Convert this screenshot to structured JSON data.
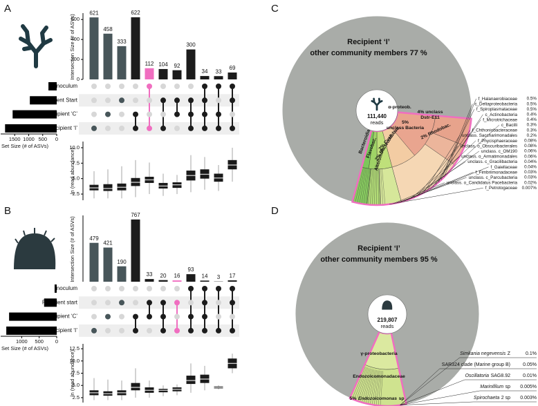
{
  "chart_data": [
    {
      "type": "upset",
      "panel": "A",
      "ylabel": "Intersection Size (# of ASVs)",
      "values": [
        621,
        458,
        333,
        622,
        112,
        104,
        92,
        300,
        34,
        33,
        69
      ],
      "colors": [
        "#48565a",
        "#48565a",
        "#48565a",
        "#1c1c1c",
        "#f06ec0",
        "#1c1c1c",
        "#1c1c1c",
        "#1c1c1c",
        "#1c1c1c",
        "#1c1c1c",
        "#1c1c1c"
      ],
      "ylim": [
        0,
        650
      ],
      "yticks": [
        0,
        200,
        400,
        600
      ],
      "sets": [
        "Inoculum",
        "Recipient Start",
        "Recipient ‘C’",
        "Recipient ‘I’"
      ],
      "set_sizes": [
        295,
        959,
        1574,
        1844
      ],
      "set_color": "#000000",
      "set_xlabel": "Set Size (# of ASVs)",
      "set_xlim": [
        2000,
        0
      ],
      "set_xticks": [
        1500,
        1000,
        500,
        0
      ],
      "memberships": [
        [
          3
        ],
        [
          2
        ],
        [
          1
        ],
        [
          2,
          3
        ],
        [
          0,
          3
        ],
        [
          1,
          3
        ],
        [
          1,
          2
        ],
        [
          1,
          2,
          3
        ],
        [
          0,
          1,
          2,
          3
        ],
        [
          0,
          2,
          3
        ],
        [
          0,
          1,
          3
        ]
      ],
      "box": {
        "ylabel": "ln (read abundance)",
        "ylim": [
          1.5,
          11
        ],
        "yticks": [
          2.5,
          {
            "value": 5,
            "label": "5.0"
          },
          7.5,
          {
            "value": 10,
            "label": "10.0"
          }
        ],
        "stats": [
          [
            1.8,
            3.1,
            3.5,
            4.0,
            6.2
          ],
          [
            1.8,
            3.0,
            3.4,
            4.1,
            6.5
          ],
          [
            1.8,
            3.1,
            3.6,
            4.2,
            7.0
          ],
          [
            2.0,
            3.8,
            4.4,
            5.1,
            8.0
          ],
          [
            2.5,
            4.3,
            4.8,
            5.3,
            7.6
          ],
          [
            2.2,
            3.4,
            3.8,
            4.3,
            5.8
          ],
          [
            2.5,
            3.5,
            4.0,
            4.4,
            5.6
          ],
          [
            2.8,
            4.7,
            5.5,
            6.3,
            8.8
          ],
          [
            3.2,
            5.0,
            5.7,
            6.5,
            8.5
          ],
          [
            3.0,
            4.5,
            5.1,
            5.8,
            7.2
          ],
          [
            4.5,
            6.5,
            7.2,
            8.0,
            10.0
          ]
        ]
      }
    },
    {
      "type": "upset",
      "panel": "B",
      "ylabel": "Intersection Size (# of ASVs)",
      "values": [
        479,
        421,
        190,
        767,
        33,
        20,
        16,
        93,
        14,
        3,
        17
      ],
      "colors": [
        "#48565a",
        "#48565a",
        "#48565a",
        "#1c1c1c",
        "#1c1c1c",
        "#1c1c1c",
        "#f06ec0",
        "#1c1c1c",
        "#1c1c1c",
        "#1c1c1c",
        "#1c1c1c"
      ],
      "ylim": [
        0,
        800
      ],
      "sets": [
        "Inoculum",
        "Recipient start",
        "Recipient ‘C’",
        "Recipient ‘I’"
      ],
      "set_sizes": [
        60,
        360,
        1360,
        1440
      ],
      "set_color": "#000000",
      "set_xlabel": "Set Size (# of ASVs)",
      "set_xlim": [
        1600,
        0
      ],
      "set_xticks": [
        1000,
        500,
        0
      ],
      "memberships": [
        [
          3
        ],
        [
          2
        ],
        [
          1
        ],
        [
          2,
          3
        ],
        [
          1,
          2
        ],
        [
          1,
          2,
          3
        ],
        [
          1,
          3
        ],
        [
          0,
          2,
          3
        ],
        [
          0,
          1,
          2,
          3
        ],
        [
          0,
          3
        ],
        [
          0,
          1,
          3
        ]
      ],
      "box": {
        "ylabel": "ln (read abundance)",
        "ylim": [
          1.5,
          13.5
        ],
        "yticks": [
          2.5,
          {
            "value": 5,
            "label": "5.0"
          },
          7.5,
          {
            "value": 10,
            "label": "10.0"
          },
          12.5
        ],
        "stats": [
          [
            2.0,
            3.0,
            3.5,
            4.0,
            6.5
          ],
          [
            2.0,
            2.9,
            3.3,
            3.8,
            6.2
          ],
          [
            2.0,
            3.0,
            3.5,
            4.0,
            6.0
          ],
          [
            2.5,
            4.0,
            4.6,
            5.5,
            8.5
          ],
          [
            2.5,
            3.5,
            4.0,
            4.6,
            6.0
          ],
          [
            2.8,
            3.6,
            4.0,
            4.3,
            5.0
          ],
          [
            3.0,
            3.8,
            4.2,
            4.6,
            5.2
          ],
          [
            3.5,
            5.3,
            6.0,
            7.0,
            9.5
          ],
          [
            4.0,
            5.5,
            6.3,
            7.2,
            9.0
          ],
          [
            4.2,
            4.4,
            4.6,
            4.8,
            5.0
          ],
          [
            7.5,
            8.5,
            9.5,
            10.5,
            11.5
          ]
        ]
      }
    },
    {
      "type": "pie",
      "panel": "C",
      "title_lines": [
        "Recipient ‘I’",
        "other community members 77 %"
      ],
      "value": 77,
      "color": "#a9aca8",
      "highlight_color": "#f06ec0",
      "reads": "111,440",
      "reads_unit": "reads",
      "segment_labels": [
        [
          "α-proteob."
        ],
        [
          "4% unclass",
          "Dstr-E11"
        ],
        [
          "5%",
          "unclass Bacteria"
        ],
        [
          "2% Rhodobac."
        ],
        [
          "Bacteroidia"
        ],
        [
          "Flavobac."
        ],
        [
          "2% Cyclobac."
        ],
        [
          "2% Bacteroid."
        ],
        [
          "Alteromon."
        ]
      ],
      "legend": [
        {
          "name": "f_Halanaerobiaceae",
          "pct": "0.5%"
        },
        {
          "name": "c_Deltaproteobacteria",
          "pct": "0.5%"
        },
        {
          "name": "f_Spiroplasmataceae",
          "pct": "0.5%"
        },
        {
          "name": "c_Actinobacteria",
          "pct": "0.4%"
        },
        {
          "name": "f_Microtrichaceae",
          "pct": "0.4%"
        },
        {
          "name": "c_Bacilli",
          "pct": "0.3%"
        },
        {
          "name": "f_Chthoniobacteraceae",
          "pct": "0.3%"
        },
        {
          "name": "unclass. Saccharimonadales",
          "pct": "0.2%"
        },
        {
          "name": "f_Phycisphaeraceae",
          "pct": "0.08%"
        },
        {
          "name": "unclass. o_Obscuribacterales",
          "pct": "0.08%"
        },
        {
          "name": "unclass. c_OM190",
          "pct": "0.06%"
        },
        {
          "name": "unclass. o_Armatimonadales",
          "pct": "0.06%"
        },
        {
          "name": "unclass. c_Gracilibacteria",
          "pct": "0.04%"
        },
        {
          "name": "f_Gaiellaceae",
          "pct": "0.04%"
        },
        {
          "name": "f_Fimbriimonadaceae",
          "pct": "0.03%"
        },
        {
          "name": "unclass. c_Parcubacteria",
          "pct": "0.03%"
        },
        {
          "name": "unclass. o_Candidatus Pacebacteria",
          "pct": "0.02%"
        },
        {
          "name": "f_Petrotogaceae",
          "pct": "0.007%"
        }
      ]
    },
    {
      "type": "pie",
      "panel": "D",
      "title_lines": [
        "Recipient ‘I’",
        "other community members 95 %"
      ],
      "value": 95,
      "color": "#a9aca8",
      "highlight_color": "#f06ec0",
      "reads": "219,807",
      "reads_unit": "reads",
      "segment_labels": [
        [
          "γ-proteobacteria"
        ],
        [
          "Endozoicomonadaceae"
        ],
        [
          {
            "text": "5%"
          },
          {
            "text": "Endozoicomonas",
            "italic": true
          },
          {
            "text": "sp"
          }
        ]
      ],
      "legend": [
        {
          "name": [
            {
              "text": "Simkania negevensis",
              "italic": true
            },
            {
              "text": "Z"
            }
          ],
          "pct": "0.1%"
        },
        {
          "name": "SAR324 clade (Marine group B)",
          "pct": "0.05%"
        },
        {
          "name": [
            {
              "text": "Oscillatoria",
              "italic": true
            },
            {
              "text": "SAG8.92"
            }
          ],
          "pct": "0.01%"
        },
        {
          "name": [
            {
              "text": "Marinifilum",
              "italic": true
            },
            {
              "text": "sp"
            }
          ],
          "pct": "0.005%"
        },
        {
          "name": [
            {
              "text": "Spirochaeta",
              "italic": true
            },
            {
              "text": "2 sp"
            }
          ],
          "pct": "0.003%"
        }
      ]
    }
  ]
}
